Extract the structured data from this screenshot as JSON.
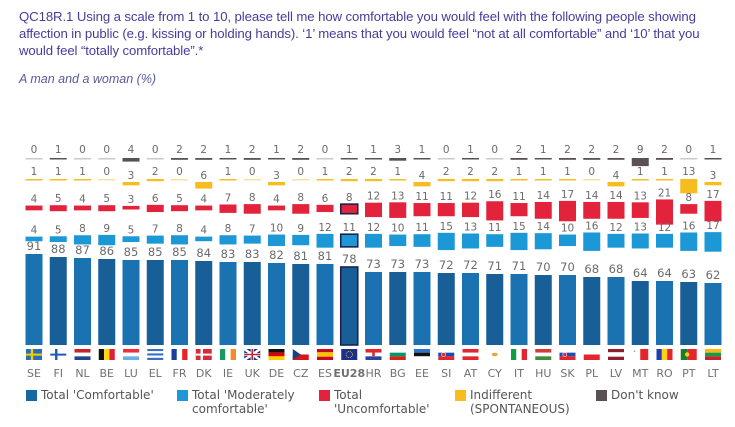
{
  "header": {
    "question": "QC18R.1 Using a scale from 1 to 10, please tell me how comfortable you would feel with the following people showing affection in public (e.g. kissing or holding hands). ‘1’ means that you would feel “not at all comfortable” and ‘10’ that you would feel “totally comfortable”.*",
    "subtitle": "A man and a woman (%)"
  },
  "chart_data": {
    "type": "bar",
    "title": "A man and a woman (%)",
    "categories": [
      "SE",
      "FI",
      "NL",
      "BE",
      "LU",
      "EL",
      "FR",
      "DK",
      "IE",
      "UK",
      "DE",
      "CZ",
      "ES",
      "EU28",
      "HR",
      "BG",
      "EE",
      "SI",
      "AT",
      "CY",
      "IT",
      "HU",
      "SK",
      "PL",
      "LV",
      "MT",
      "RO",
      "PT",
      "LT"
    ],
    "highlight_category": "EU28",
    "series": [
      {
        "name": "Total 'Comfortable'",
        "color": "#1767a3",
        "values": [
          91,
          88,
          87,
          86,
          85,
          85,
          85,
          84,
          83,
          83,
          82,
          81,
          81,
          78,
          73,
          73,
          73,
          72,
          72,
          71,
          71,
          70,
          70,
          68,
          68,
          64,
          64,
          63,
          62
        ]
      },
      {
        "name": "Total 'Moderately comfortable'",
        "color": "#1b98d5",
        "values": [
          4,
          5,
          8,
          9,
          5,
          7,
          8,
          4,
          8,
          7,
          10,
          9,
          12,
          11,
          12,
          10,
          11,
          15,
          13,
          11,
          15,
          14,
          10,
          16,
          12,
          13,
          12,
          16,
          17
        ]
      },
      {
        "name": "Total 'Uncomfortable'",
        "color": "#e2233b",
        "values": [
          4,
          5,
          4,
          5,
          3,
          6,
          5,
          4,
          7,
          8,
          4,
          8,
          6,
          8,
          12,
          13,
          11,
          11,
          12,
          16,
          11,
          14,
          17,
          14,
          14,
          13,
          21,
          8,
          17
        ]
      },
      {
        "name": "Indifferent (SPONTANEOUS)",
        "color": "#f7bd1e",
        "values": [
          1,
          1,
          1,
          0,
          3,
          2,
          0,
          6,
          1,
          0,
          3,
          0,
          1,
          2,
          2,
          1,
          4,
          2,
          2,
          2,
          1,
          1,
          1,
          0,
          4,
          1,
          1,
          13,
          3
        ]
      },
      {
        "name": "Don't know",
        "color": "#5b5055",
        "values": [
          0,
          1,
          0,
          0,
          4,
          0,
          2,
          2,
          1,
          2,
          1,
          2,
          0,
          1,
          1,
          3,
          1,
          0,
          1,
          0,
          2,
          1,
          2,
          2,
          2,
          9,
          2,
          0,
          1
        ]
      }
    ],
    "xlabel": "",
    "ylabel": "",
    "ylim": [
      0,
      100
    ],
    "grid": false,
    "legend_position": "bottom"
  },
  "legend": [
    {
      "label": "Total 'Comfortable'",
      "color": "#1767a3"
    },
    {
      "label": "Total 'Moderately comfortable'",
      "color": "#1b98d5"
    },
    {
      "label": "Total 'Uncomfortable'",
      "color": "#e2233b"
    },
    {
      "label": "Indifferent (SPONTANEOUS)",
      "color": "#f7bd1e"
    },
    {
      "label": "Don't know",
      "color": "#5b5055"
    }
  ],
  "flags": {
    "SE": {
      "t": "cross",
      "c": [
        "#2a6ebb",
        "#f5d000"
      ]
    },
    "FI": {
      "t": "cross",
      "c": [
        "#ffffff",
        "#1c5bb5"
      ]
    },
    "NL": {
      "t": "h",
      "c": [
        "#c8232c",
        "#ffffff",
        "#21468b"
      ]
    },
    "BE": {
      "t": "v",
      "c": [
        "#111111",
        "#f9d616",
        "#e31d33"
      ]
    },
    "LU": {
      "t": "h",
      "c": [
        "#ee2e3c",
        "#ffffff",
        "#6ab0e3"
      ]
    },
    "EL": {
      "t": "h",
      "c": [
        "#3b6fc4",
        "#ffffff",
        "#3b6fc4",
        "#ffffff",
        "#3b6fc4"
      ]
    },
    "FR": {
      "t": "v",
      "c": [
        "#1a3f9b",
        "#ffffff",
        "#e3262e"
      ]
    },
    "DK": {
      "t": "cross",
      "c": [
        "#d52b3a",
        "#ffffff"
      ]
    },
    "IE": {
      "t": "v",
      "c": [
        "#169b62",
        "#ffffff",
        "#f58b2b"
      ]
    },
    "UK": {
      "t": "uk",
      "c": [
        "#1a3583",
        "#ffffff",
        "#cf1f2e"
      ]
    },
    "DE": {
      "t": "h",
      "c": [
        "#111111",
        "#dd0000",
        "#ffce00"
      ]
    },
    "CZ": {
      "t": "cz",
      "c": [
        "#ffffff",
        "#d7141a",
        "#11457e"
      ]
    },
    "ES": {
      "t": "h3",
      "c": [
        "#c60b1e",
        "#ffc400",
        "#c60b1e"
      ]
    },
    "EU28": {
      "t": "eu",
      "c": [
        "#1b2f8f",
        "#ffdd00"
      ]
    },
    "HR": {
      "t": "h",
      "c": [
        "#e3262e",
        "#ffffff",
        "#2a44a0"
      ]
    },
    "BG": {
      "t": "h",
      "c": [
        "#ffffff",
        "#00966e",
        "#d62612"
      ]
    },
    "EE": {
      "t": "h",
      "c": [
        "#2a73c9",
        "#111111",
        "#ffffff"
      ]
    },
    "SI": {
      "t": "h",
      "c": [
        "#ffffff",
        "#1b48b2",
        "#e3262e"
      ]
    },
    "AT": {
      "t": "h",
      "c": [
        "#e3262e",
        "#ffffff",
        "#e3262e"
      ]
    },
    "CY": {
      "t": "cy",
      "c": [
        "#ffffff",
        "#e8a33a"
      ]
    },
    "IT": {
      "t": "v",
      "c": [
        "#169b45",
        "#ffffff",
        "#e3262e"
      ]
    },
    "HU": {
      "t": "h",
      "c": [
        "#d33a3a",
        "#ffffff",
        "#3c8d3c"
      ]
    },
    "SK": {
      "t": "h",
      "c": [
        "#ffffff",
        "#1c4fb3",
        "#e3262e"
      ]
    },
    "PL": {
      "t": "h2",
      "c": [
        "#ffffff",
        "#e3262e"
      ]
    },
    "LV": {
      "t": "h3",
      "c": [
        "#8e1f2c",
        "#ffffff",
        "#8e1f2c"
      ]
    },
    "MT": {
      "t": "v2",
      "c": [
        "#ffffff",
        "#e3262e"
      ]
    },
    "RO": {
      "t": "v",
      "c": [
        "#1c3fb0",
        "#fcd116",
        "#e3262e"
      ]
    },
    "PT": {
      "t": "pt",
      "c": [
        "#1d7a2e",
        "#e3262e"
      ]
    },
    "LT": {
      "t": "h",
      "c": [
        "#fdb913",
        "#169b45",
        "#c1272d"
      ]
    }
  }
}
